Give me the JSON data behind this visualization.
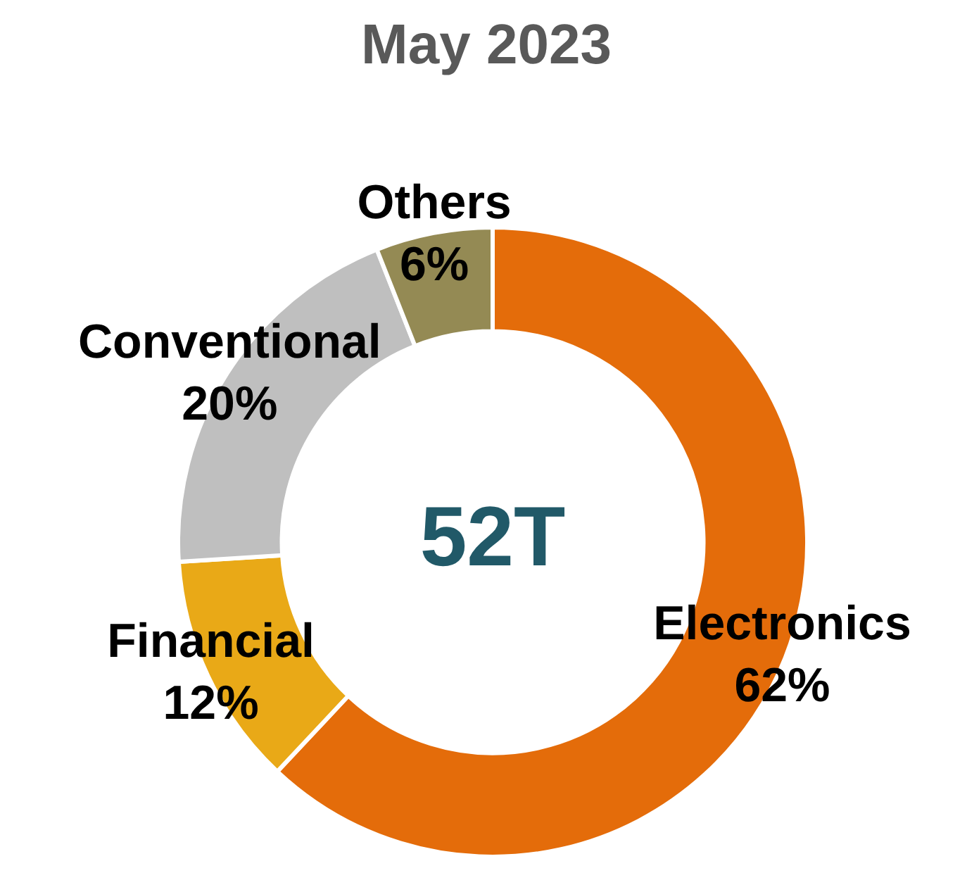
{
  "chart_data": {
    "type": "donut",
    "title": "May 2023",
    "categories": [
      "Electronics",
      "Financial",
      "Conventional",
      "Others"
    ],
    "values": [
      62,
      12,
      20,
      6
    ],
    "colors": [
      "#e46c0a",
      "#e9a917",
      "#bfbfbf",
      "#948a54"
    ],
    "value_labels": [
      "62%",
      "12%",
      "20%",
      "6%"
    ],
    "annotations": [
      "52T"
    ]
  }
}
